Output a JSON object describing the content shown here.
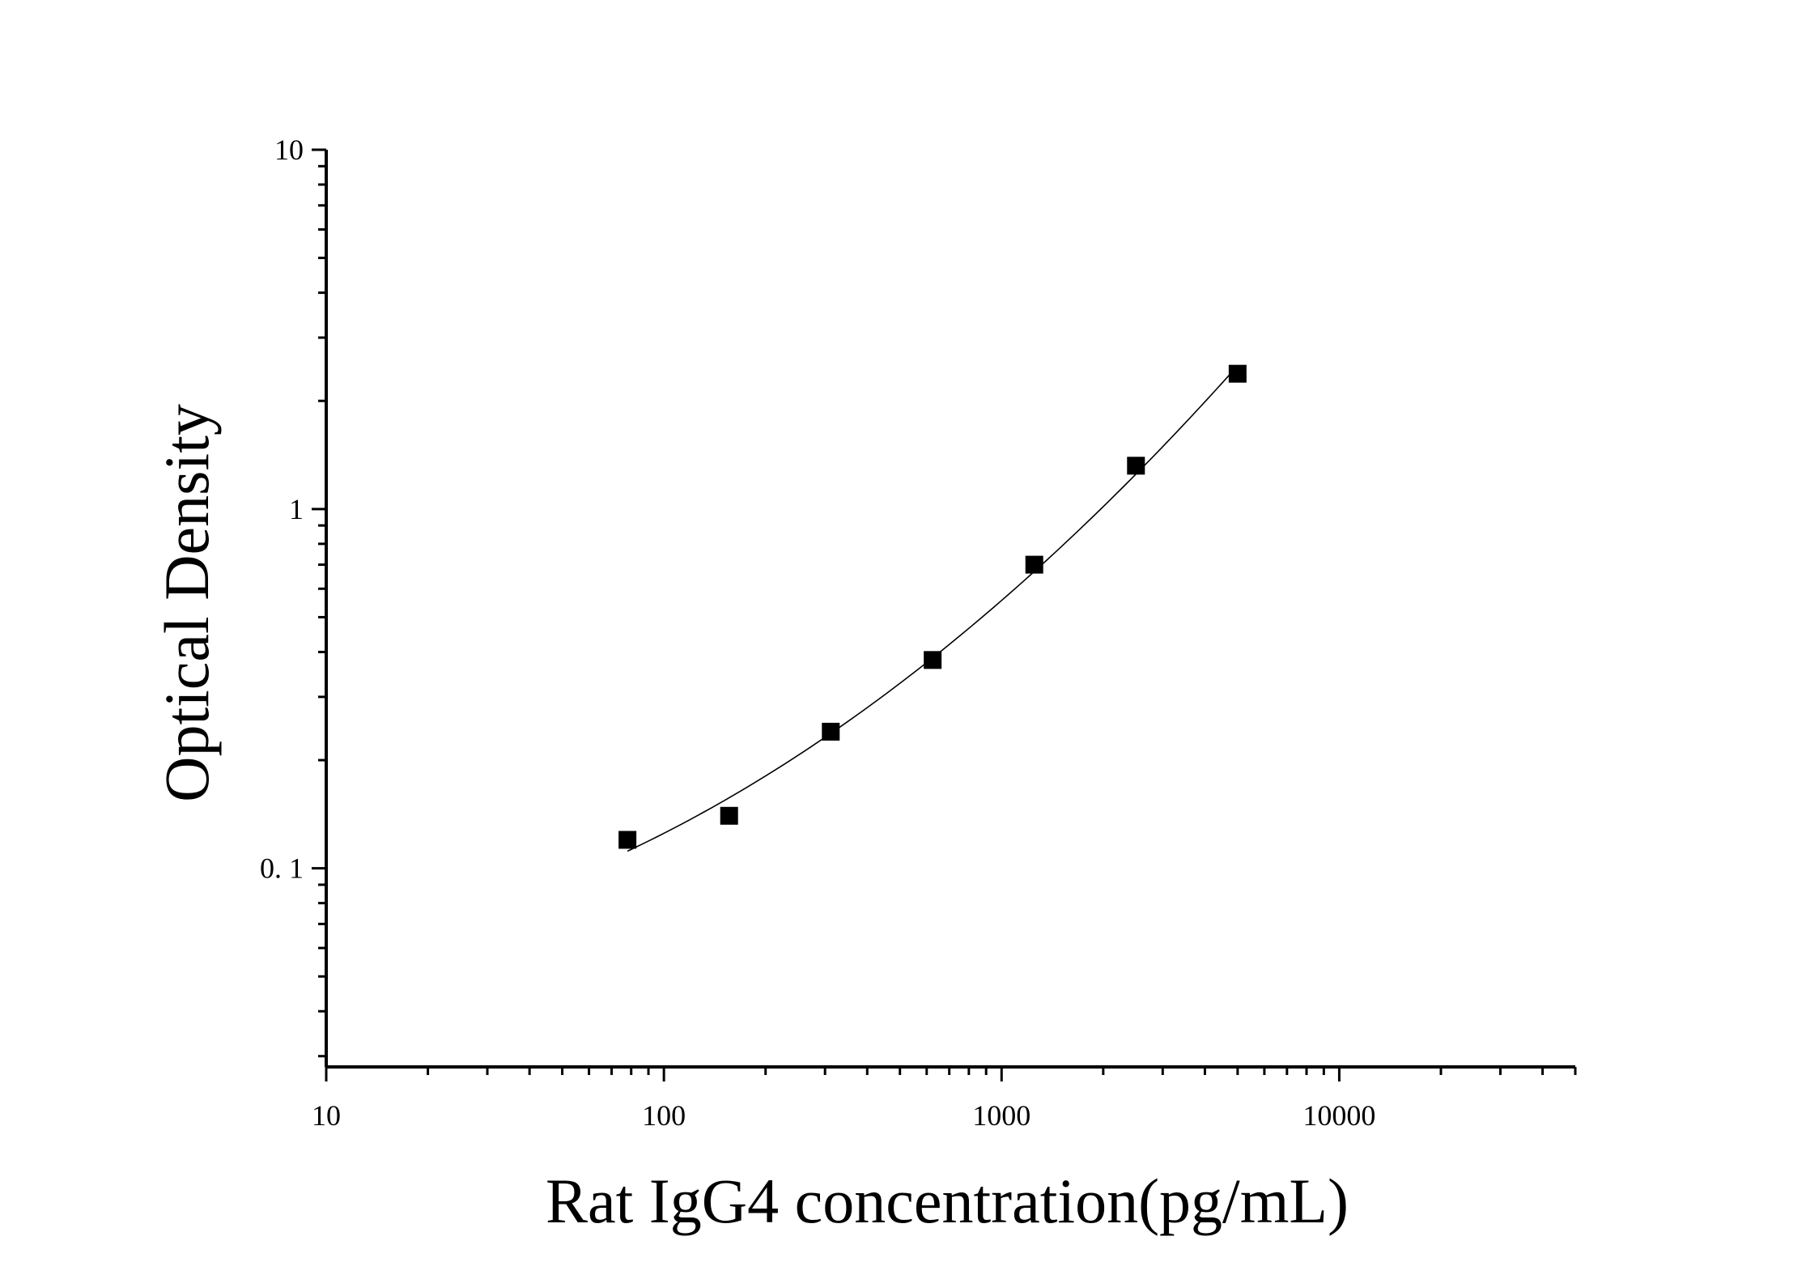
{
  "chart_data": {
    "type": "scatter",
    "title": "",
    "xlabel": "Rat IgG4 concentration(pg/mL)",
    "ylabel": "Optical Density",
    "x_scale": "log",
    "y_scale": "log",
    "xlim": [
      10,
      50000
    ],
    "ylim": [
      0.028,
      10
    ],
    "x_ticks": [
      {
        "value": 10,
        "label": "10"
      },
      {
        "value": 100,
        "label": "100"
      },
      {
        "value": 1000,
        "label": "1000"
      },
      {
        "value": 10000,
        "label": "10000"
      }
    ],
    "y_ticks": [
      {
        "value": 10,
        "label": "10"
      },
      {
        "value": 1,
        "label": "1"
      },
      {
        "value": 0.1,
        "label": "0. 1"
      }
    ],
    "grid": false,
    "legend": "none",
    "series": [
      {
        "x": [
          78,
          156,
          312,
          625,
          1250,
          2500,
          5000
        ],
        "y": [
          0.12,
          0.14,
          0.24,
          0.38,
          0.7,
          1.32,
          2.38
        ],
        "marker": "square",
        "fit_line": true,
        "color": "#000000"
      }
    ]
  }
}
